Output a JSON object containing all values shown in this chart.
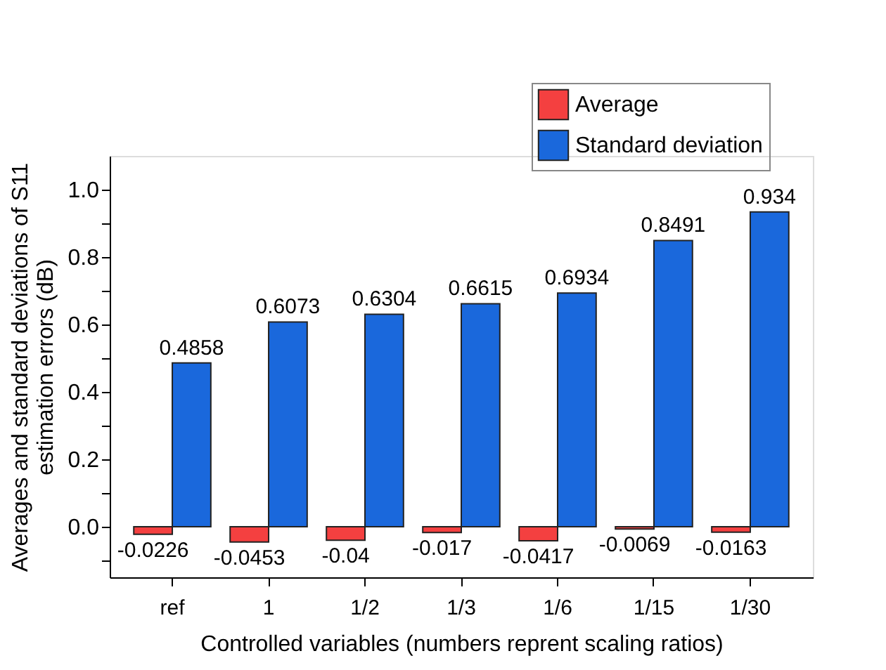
{
  "chart_data": {
    "type": "bar",
    "xlabel": "Controlled variables (numbers reprent scaling ratios)",
    "ylabel": "Averages and standard deviations of S11\nestimation errors (dB)",
    "categories": [
      "ref",
      "1",
      "1/2",
      "1/3",
      "1/6",
      "1/15",
      "1/30"
    ],
    "series": [
      {
        "name": "Average",
        "color": "#f44040",
        "values": [
          -0.0226,
          -0.0453,
          -0.04,
          -0.017,
          -0.0417,
          -0.0069,
          -0.0163
        ]
      },
      {
        "name": "Standard deviation",
        "color": "#1a68dc",
        "values": [
          0.4858,
          0.6073,
          0.6304,
          0.6615,
          0.6934,
          0.8491,
          0.934
        ]
      }
    ],
    "data_labels": true,
    "ylim": [
      -0.15,
      1.1
    ],
    "yticks": [
      {
        "value": -0.1,
        "label": null
      },
      {
        "value": 0,
        "label": "0.0"
      },
      {
        "value": 0.1,
        "label": null
      },
      {
        "value": 0.2,
        "label": "0.2"
      },
      {
        "value": 0.3,
        "label": null
      },
      {
        "value": 0.4,
        "label": "0.4"
      },
      {
        "value": 0.5,
        "label": null
      },
      {
        "value": 0.6,
        "label": "0.6"
      },
      {
        "value": 0.7,
        "label": null
      },
      {
        "value": 0.8,
        "label": "0.8"
      },
      {
        "value": 0.9,
        "label": null
      },
      {
        "value": 1,
        "label": "1.0"
      }
    ],
    "grid": false,
    "legend": "top right"
  }
}
